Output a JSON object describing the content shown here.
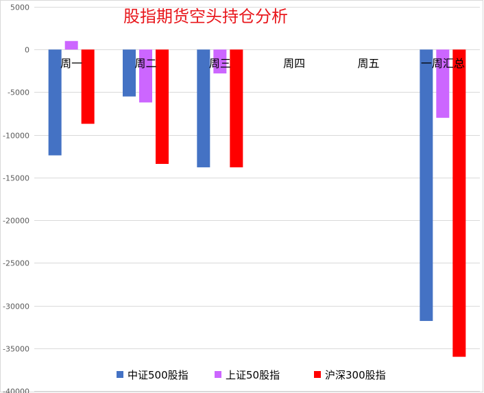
{
  "chart_data": {
    "type": "bar",
    "title": "股指期货空头持仓分析",
    "title_color": "#e8161b",
    "categories": [
      "周一",
      "周二",
      "周三",
      "周四",
      "周五",
      "一周汇总"
    ],
    "series": [
      {
        "name": "中证500股指",
        "color": "#4472c4",
        "values": [
          -12400,
          -5500,
          -13800,
          null,
          null,
          -31800
        ]
      },
      {
        "name": "上证50股指",
        "color": "#cc66ff",
        "values": [
          1000,
          -6200,
          -2800,
          null,
          null,
          -8000
        ]
      },
      {
        "name": "沪深300股指",
        "color": "#ff0000",
        "values": [
          -8700,
          -13400,
          -13800,
          null,
          null,
          -36000
        ]
      }
    ],
    "yticks": [
      5000,
      0,
      -5000,
      -10000,
      -15000,
      -20000,
      -25000,
      -30000,
      -35000,
      -40000
    ],
    "ylim": [
      -40000,
      5000
    ],
    "xlabel": "",
    "ylabel": "",
    "grid": true,
    "legend": "bottom"
  }
}
